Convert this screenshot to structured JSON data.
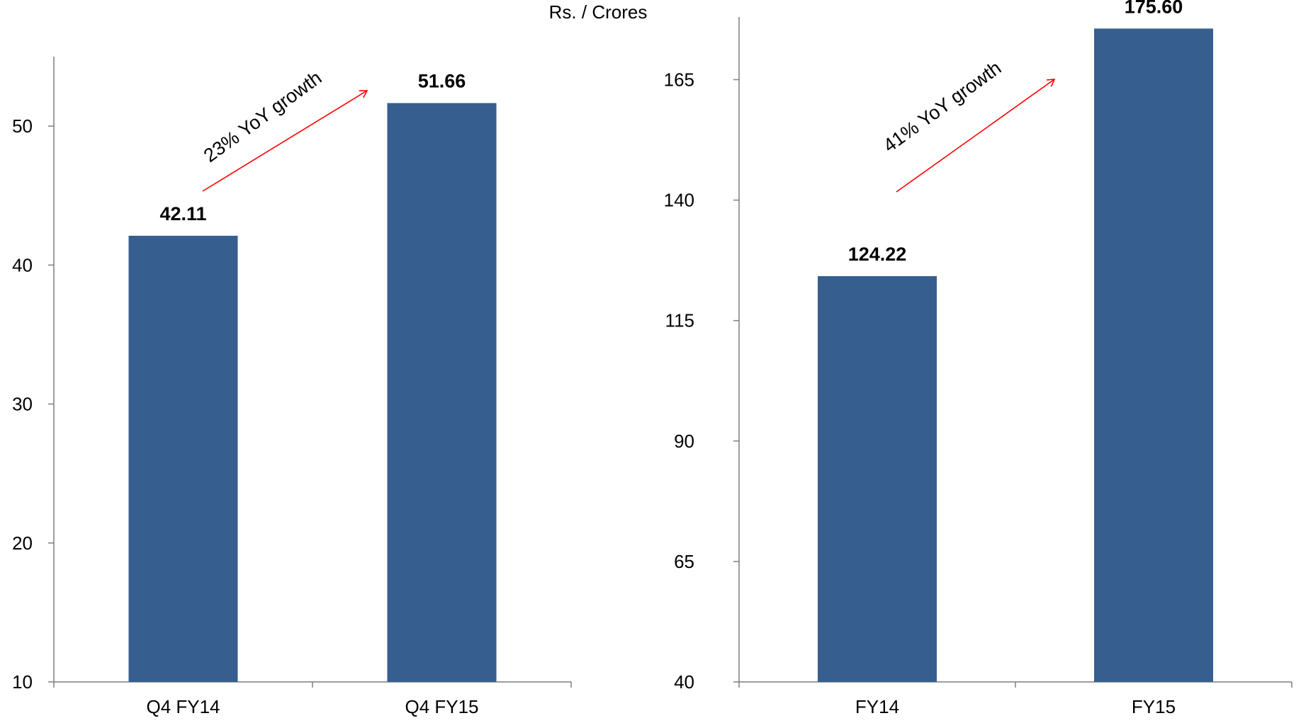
{
  "unit_label": "Rs. / Crores",
  "colors": {
    "bar": "#365F8F",
    "arrow": "#FF0000",
    "axis": "#7F7F7F"
  },
  "chart_data": [
    {
      "type": "bar",
      "categories": [
        "Q4 FY14",
        "Q4 FY15"
      ],
      "values": [
        42.11,
        51.66
      ],
      "data_labels": [
        "42.11",
        "51.66"
      ],
      "ylim": [
        10,
        55
      ],
      "yticks": [
        10,
        20,
        30,
        40,
        50
      ],
      "annotation": "23% YoY growth",
      "grid": false
    },
    {
      "type": "bar",
      "categories": [
        "FY14",
        "FY15"
      ],
      "values": [
        124.22,
        175.6
      ],
      "data_labels": [
        "124.22",
        "175.60"
      ],
      "ylim": [
        40,
        178
      ],
      "yticks": [
        40,
        65,
        90,
        115,
        140,
        165
      ],
      "annotation": "41% YoY growth",
      "grid": false
    }
  ]
}
